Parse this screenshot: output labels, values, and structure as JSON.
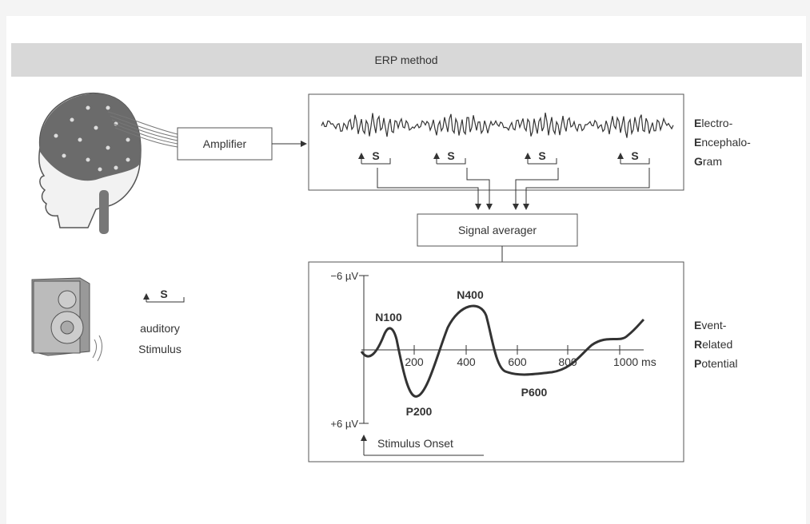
{
  "header": {
    "title": "ERP method"
  },
  "nodes": {
    "amplifier": "Amplifier",
    "signal_averager": "Signal averager"
  },
  "eeg": {
    "stimulus_markers": [
      "S",
      "S",
      "S",
      "S"
    ],
    "label": [
      "Electro-",
      "Encephalo-",
      "Gram"
    ]
  },
  "stimulus": {
    "marker": "S",
    "label": [
      "auditory",
      "Stimulus"
    ]
  },
  "erp": {
    "y_top": "−6 µV",
    "y_bottom": "+6 µV",
    "x_ticks": [
      "200",
      "400",
      "600",
      "800",
      "1000 ms"
    ],
    "components": [
      "N100",
      "N400",
      "P200",
      "P600"
    ],
    "onset": "Stimulus Onset",
    "label": [
      "Event-",
      "Related",
      "Potential"
    ]
  }
}
